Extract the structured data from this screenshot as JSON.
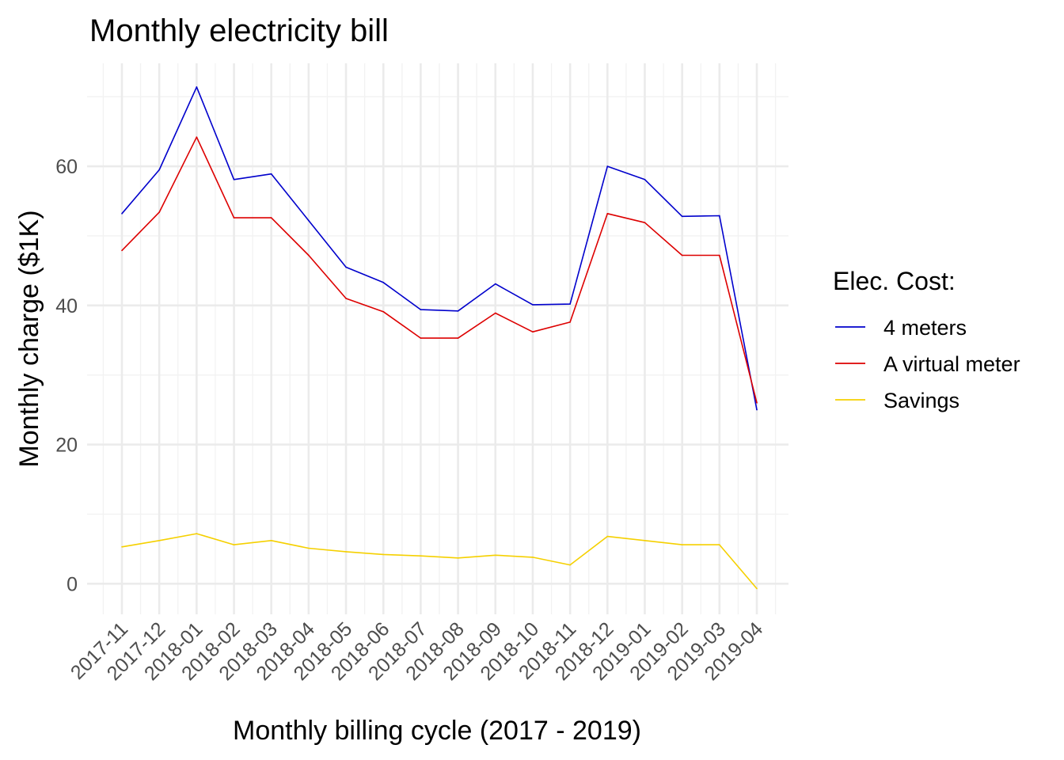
{
  "chart_data": {
    "type": "line",
    "title": "Monthly electricity bill",
    "xlabel": "Monthly billing cycle (2017 - 2019)",
    "ylabel": "Monthly charge ($1K)",
    "categories": [
      "2017-11",
      "2017-12",
      "2018-01",
      "2018-02",
      "2018-03",
      "2018-04",
      "2018-05",
      "2018-06",
      "2018-07",
      "2018-08",
      "2018-09",
      "2018-10",
      "2018-11",
      "2018-12",
      "2019-01",
      "2019-02",
      "2019-03",
      "2019-04"
    ],
    "yticks": [
      0,
      20,
      40,
      60
    ],
    "ylim": [
      -4.4,
      74.8
    ],
    "grid": true,
    "legend": {
      "title": "Elec. Cost:",
      "position": "right"
    },
    "series": [
      {
        "name": "4 meters",
        "color": "#0000cc",
        "values": [
          53.2,
          59.5,
          71.4,
          58.1,
          58.9,
          52.2,
          45.5,
          43.3,
          39.4,
          39.2,
          43.1,
          40.1,
          40.2,
          60.0,
          58.1,
          52.8,
          52.9,
          25.0
        ]
      },
      {
        "name": "A virtual meter",
        "color": "#dd0000",
        "values": [
          47.9,
          53.4,
          64.2,
          52.6,
          52.6,
          47.2,
          41.0,
          39.1,
          35.3,
          35.3,
          38.9,
          36.2,
          37.6,
          53.2,
          51.9,
          47.2,
          47.2,
          26.0
        ]
      },
      {
        "name": "Savings",
        "color": "#f5d000",
        "values": [
          5.3,
          6.2,
          7.2,
          5.6,
          6.2,
          5.1,
          4.6,
          4.2,
          4.0,
          3.7,
          4.1,
          3.8,
          2.7,
          6.8,
          6.2,
          5.6,
          5.6,
          -0.7
        ]
      }
    ]
  }
}
